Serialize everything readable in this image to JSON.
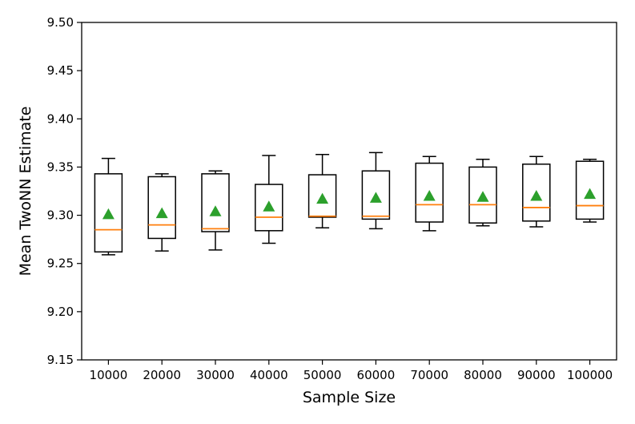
{
  "chart_data": {
    "type": "box",
    "xlabel": "Sample Size",
    "ylabel": "Mean TwoNN Estimate",
    "ylim": [
      9.15,
      9.5
    ],
    "yticks": [
      "9.15",
      "9.20",
      "9.25",
      "9.30",
      "9.35",
      "9.40",
      "9.45",
      "9.50"
    ],
    "categories": [
      "10000",
      "20000",
      "30000",
      "40000",
      "50000",
      "60000",
      "70000",
      "80000",
      "90000",
      "100000"
    ],
    "boxes": [
      {
        "whisker_low": 9.259,
        "q1": 9.262,
        "median": 9.285,
        "q3": 9.343,
        "whisker_high": 9.359,
        "mean": 9.301
      },
      {
        "whisker_low": 9.263,
        "q1": 9.276,
        "median": 9.29,
        "q3": 9.34,
        "whisker_high": 9.343,
        "mean": 9.302
      },
      {
        "whisker_low": 9.264,
        "q1": 9.283,
        "median": 9.286,
        "q3": 9.343,
        "whisker_high": 9.346,
        "mean": 9.304
      },
      {
        "whisker_low": 9.271,
        "q1": 9.284,
        "median": 9.298,
        "q3": 9.332,
        "whisker_high": 9.362,
        "mean": 9.309
      },
      {
        "whisker_low": 9.287,
        "q1": 9.298,
        "median": 9.299,
        "q3": 9.342,
        "whisker_high": 9.363,
        "mean": 9.317
      },
      {
        "whisker_low": 9.286,
        "q1": 9.296,
        "median": 9.299,
        "q3": 9.346,
        "whisker_high": 9.365,
        "mean": 9.318
      },
      {
        "whisker_low": 9.284,
        "q1": 9.293,
        "median": 9.311,
        "q3": 9.354,
        "whisker_high": 9.361,
        "mean": 9.32
      },
      {
        "whisker_low": 9.289,
        "q1": 9.292,
        "median": 9.311,
        "q3": 9.35,
        "whisker_high": 9.358,
        "mean": 9.319
      },
      {
        "whisker_low": 9.288,
        "q1": 9.294,
        "median": 9.308,
        "q3": 9.353,
        "whisker_high": 9.361,
        "mean": 9.32
      },
      {
        "whisker_low": 9.293,
        "q1": 9.296,
        "median": 9.31,
        "q3": 9.356,
        "whisker_high": 9.358,
        "mean": 9.322
      }
    ],
    "colors": {
      "box": "#000000",
      "median": "#ff7f0e",
      "mean": "#2ca02c"
    },
    "grid": false
  }
}
